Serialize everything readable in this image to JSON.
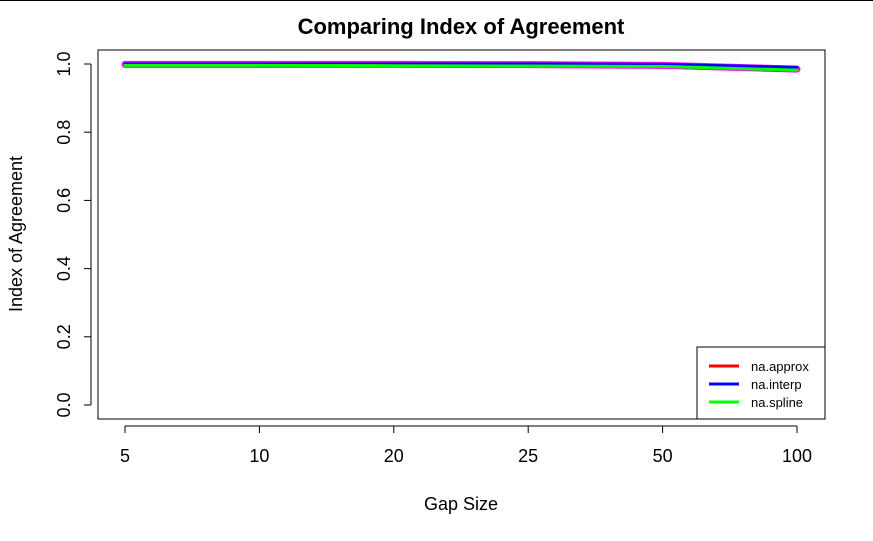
{
  "chart_data": {
    "type": "line",
    "title": "Comparing Index of Agreement",
    "xlabel": "Gap Size",
    "ylabel": "Index of Agreement",
    "categories": [
      "5",
      "10",
      "20",
      "25",
      "50",
      "100"
    ],
    "ylim": [
      0.0,
      1.0
    ],
    "yticks": [
      "0.0",
      "0.2",
      "0.4",
      "0.6",
      "0.8",
      "1.0"
    ],
    "series": [
      {
        "name": "na.approx",
        "color": "#ff0000",
        "values": [
          0.999,
          0.999,
          0.999,
          0.998,
          0.996,
          0.985
        ]
      },
      {
        "name": "na.interp",
        "color": "#0000ff",
        "values": [
          1.0,
          1.0,
          1.0,
          1.0,
          0.999,
          0.99
        ]
      },
      {
        "name": "na.spline",
        "color": "#00ff00",
        "values": [
          0.996,
          0.996,
          0.995,
          0.994,
          0.993,
          0.982
        ]
      }
    ],
    "grid": false,
    "legend_position": "bottom-right"
  }
}
